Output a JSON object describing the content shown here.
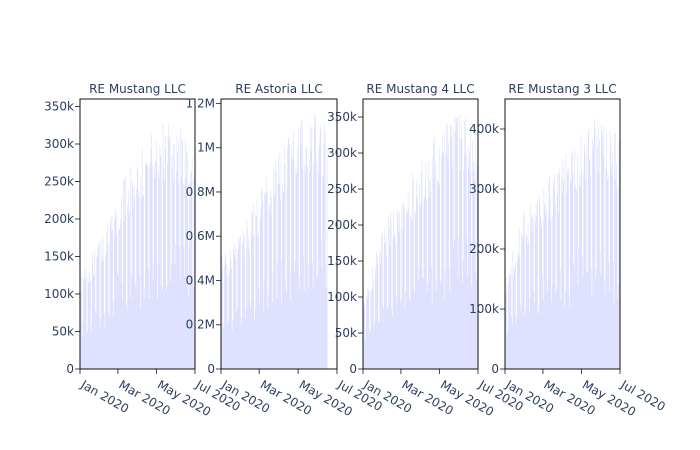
{
  "chart_data": [
    {
      "type": "bar",
      "title": "RE Mustang LLC",
      "color": "#636efa",
      "ylim": [
        0,
        360000
      ],
      "y_ticks": [
        0,
        50000,
        100000,
        150000,
        200000,
        250000,
        300000,
        350000
      ],
      "y_tick_labels": [
        "0",
        "50k",
        "100k",
        "150k",
        "200k",
        "250k",
        "300k",
        "350k"
      ],
      "x_range": [
        "2020-01-01",
        "2020-07-01"
      ],
      "x_ticks": [
        "2020-01-01",
        "2020-03-01",
        "2020-05-01",
        "2020-07-01"
      ],
      "x_tick_labels": [
        "Jan 2020",
        "Mar 2020",
        "May 2020",
        "Jul 2020"
      ],
      "trend_points": [
        {
          "date": "2020-01-01",
          "value": 120000
        },
        {
          "date": "2020-02-01",
          "value": 170000
        },
        {
          "date": "2020-03-01",
          "value": 230000
        },
        {
          "date": "2020-04-01",
          "value": 280000
        },
        {
          "date": "2020-05-01",
          "value": 315000
        },
        {
          "date": "2020-06-01",
          "value": 320000
        },
        {
          "date": "2020-06-30",
          "value": 300000
        }
      ]
    },
    {
      "type": "bar",
      "title": "RE Astoria LLC",
      "color": "#636efa",
      "ylim": [
        0,
        1220000
      ],
      "y_ticks": [
        0,
        200000,
        400000,
        600000,
        800000,
        1000000,
        1200000
      ],
      "y_tick_labels": [
        "0",
        "0.2M",
        "0.4M",
        "0.6M",
        "0.8M",
        "1M",
        "1.2M"
      ],
      "x_range": [
        "2020-01-01",
        "2020-07-01"
      ],
      "x_ticks": [
        "2020-01-01",
        "2020-03-01",
        "2020-05-01",
        "2020-07-01"
      ],
      "x_tick_labels": [
        "Jan 2020",
        "Mar 2020",
        "May 2020",
        "Jul 2020"
      ],
      "trend_points": [
        {
          "date": "2020-01-01",
          "value": 500000
        },
        {
          "date": "2020-02-01",
          "value": 600000
        },
        {
          "date": "2020-03-01",
          "value": 780000
        },
        {
          "date": "2020-04-01",
          "value": 950000
        },
        {
          "date": "2020-05-01",
          "value": 1080000
        },
        {
          "date": "2020-06-01",
          "value": 1120000
        },
        {
          "date": "2020-06-15",
          "value": 1100000
        }
      ]
    },
    {
      "type": "bar",
      "title": "RE Mustang 4 LLC",
      "color": "#636efa",
      "ylim": [
        0,
        375000
      ],
      "y_ticks": [
        0,
        50000,
        100000,
        150000,
        200000,
        250000,
        300000,
        350000
      ],
      "y_tick_labels": [
        "0",
        "50k",
        "100k",
        "150k",
        "200k",
        "250k",
        "300k",
        "350k"
      ],
      "x_range": [
        "2020-01-01",
        "2020-07-01"
      ],
      "x_ticks": [
        "2020-01-01",
        "2020-03-01",
        "2020-05-01",
        "2020-07-01"
      ],
      "x_tick_labels": [
        "Jan 2020",
        "Mar 2020",
        "May 2020",
        "Jul 2020"
      ],
      "trend_points": [
        {
          "date": "2020-01-01",
          "value": 100000
        },
        {
          "date": "2020-02-01",
          "value": 190000
        },
        {
          "date": "2020-03-01",
          "value": 240000
        },
        {
          "date": "2020-04-01",
          "value": 280000
        },
        {
          "date": "2020-05-01",
          "value": 320000
        },
        {
          "date": "2020-06-01",
          "value": 345000
        },
        {
          "date": "2020-06-30",
          "value": 330000
        }
      ]
    },
    {
      "type": "bar",
      "title": "RE Mustang 3 LLC",
      "color": "#636efa",
      "ylim": [
        0,
        450000
      ],
      "y_ticks": [
        0,
        100000,
        200000,
        300000,
        400000
      ],
      "y_tick_labels": [
        "0",
        "100k",
        "200k",
        "300k",
        "400k"
      ],
      "x_range": [
        "2020-01-01",
        "2020-07-01"
      ],
      "x_ticks": [
        "2020-01-01",
        "2020-03-01",
        "2020-05-01",
        "2020-07-01"
      ],
      "x_tick_labels": [
        "Jan 2020",
        "Mar 2020",
        "May 2020",
        "Jul 2020"
      ],
      "trend_points": [
        {
          "date": "2020-01-01",
          "value": 150000
        },
        {
          "date": "2020-02-01",
          "value": 260000
        },
        {
          "date": "2020-03-01",
          "value": 300000
        },
        {
          "date": "2020-04-01",
          "value": 340000
        },
        {
          "date": "2020-05-01",
          "value": 390000
        },
        {
          "date": "2020-06-01",
          "value": 410000
        },
        {
          "date": "2020-06-30",
          "value": 380000
        }
      ]
    }
  ]
}
